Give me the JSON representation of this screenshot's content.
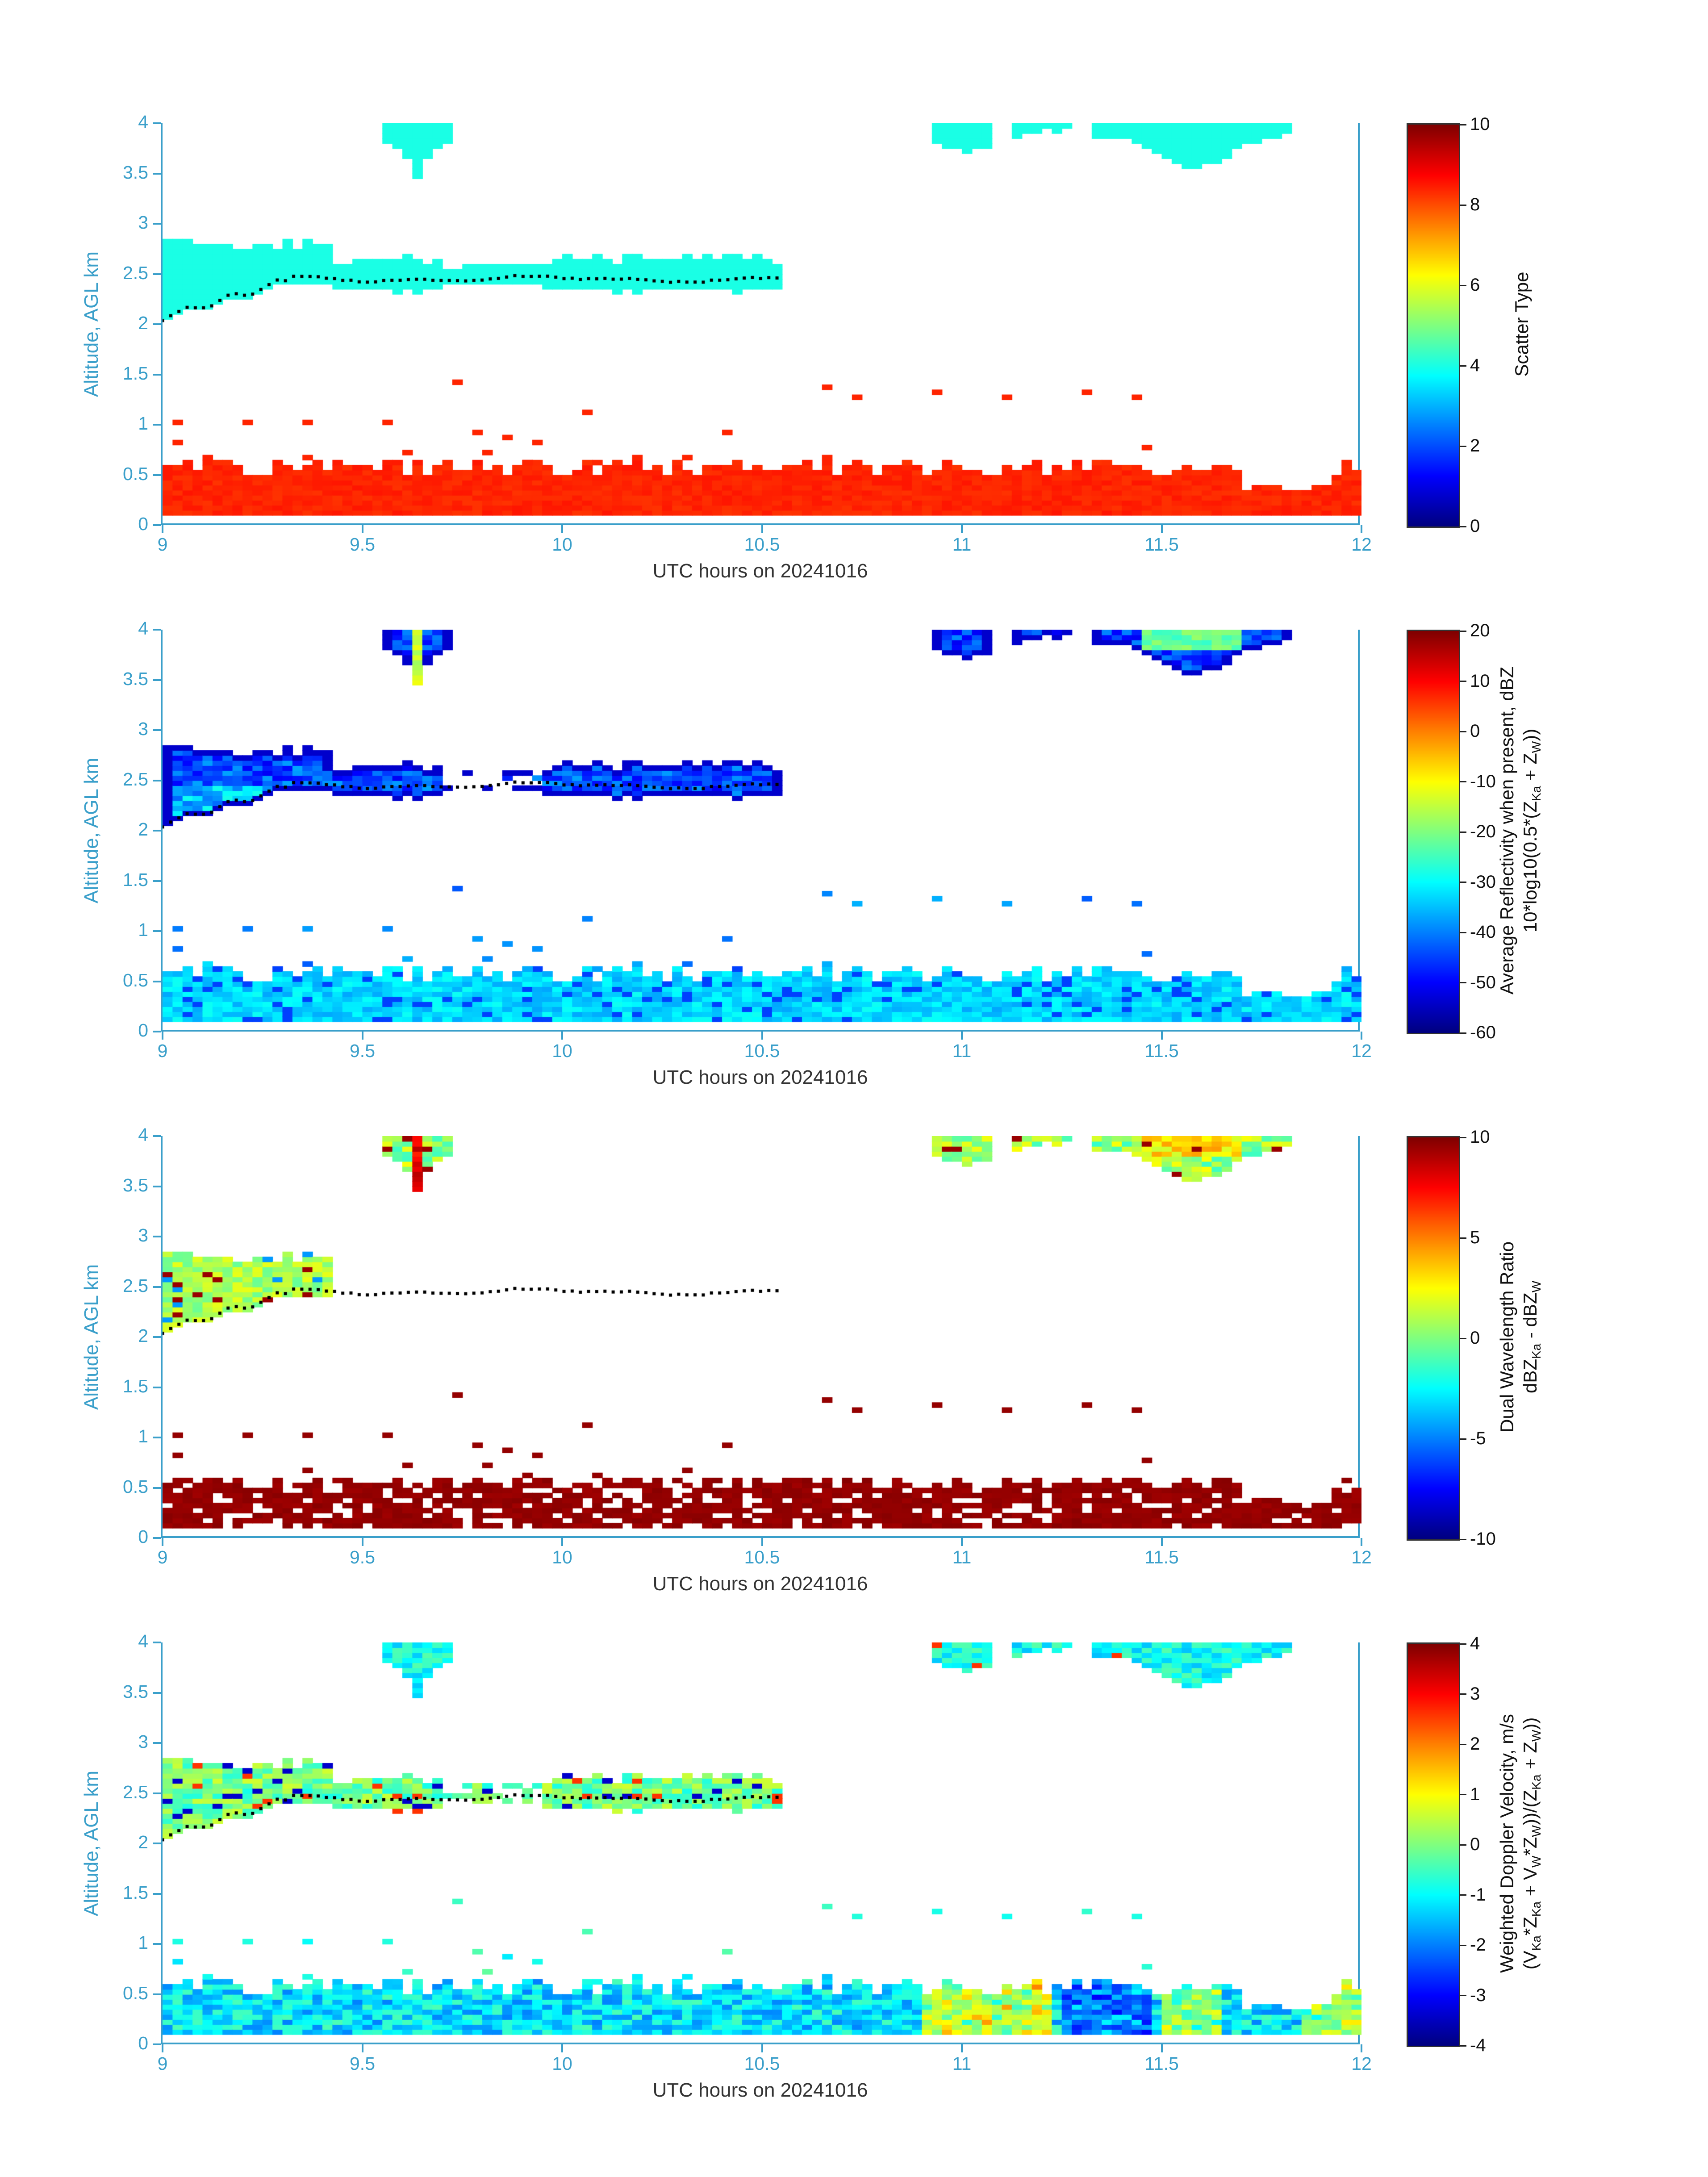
{
  "text_colors": {
    "axis": "#3a9fca",
    "xlabel": "#333333",
    "colorbar": "#111111"
  },
  "chart_data": {
    "type": "heatmap",
    "panel_count": 4,
    "shared": {
      "xlabel": "UTC hours on 20241016",
      "ylabel": "Altitude, AGL km",
      "xlim": [
        9,
        12
      ],
      "ylim": [
        0,
        4
      ],
      "nx": 120,
      "ny": 80,
      "xticks": [
        "9",
        "9.5",
        "10",
        "10.5",
        "11",
        "11.5",
        "12"
      ],
      "yticks": [
        "0",
        "0.5",
        "1",
        "1.5",
        "2",
        "2.5",
        "3",
        "3.5",
        "4"
      ],
      "cloud_band": {
        "x0": 9.0,
        "x1": 10.56,
        "left_x1": 9.42,
        "left_top": 2.74,
        "mid_top": 2.6,
        "thin_x0": 9.7,
        "thin_x1": 9.96,
        "thin_bot": 2.38,
        "thin_top": 2.54,
        "bot": 2.36
      },
      "surface_band": {
        "y_bot": 0.12,
        "top_base": 0.5,
        "top_var": 0.18,
        "notch_x0": 11.7,
        "notch_x1": 11.92,
        "notch_top": 0.34
      },
      "anvils": [
        {
          "x0": 9.55,
          "x1": 9.73,
          "xc": 9.64,
          "hw": 0.09,
          "d0": 0.12,
          "d1": 0.38,
          "pow": 1.5
        },
        {
          "x0": 10.93,
          "x1": 11.27,
          "xc": 11.02,
          "sig": 0.1,
          "d0": 0.06,
          "d1": 0.2,
          "gap_x0": 11.08,
          "gap_x1": 11.12
        },
        {
          "x0": 11.33,
          "x1": 11.82,
          "xc": 11.58,
          "sig": 0.13,
          "d0": 0.08,
          "d1": 0.34
        }
      ],
      "streak_x0": 9.615,
      "streak_x1": 9.655,
      "core_x0": 11.46,
      "core_x1": 11.7,
      "core_ymin": 3.82,
      "dots": [
        [
          9.04,
          1.0
        ],
        [
          9.04,
          0.84
        ],
        [
          9.22,
          1.02
        ],
        [
          9.37,
          1.04
        ],
        [
          9.37,
          0.7
        ],
        [
          9.55,
          1.0
        ],
        [
          9.62,
          0.72
        ],
        [
          9.73,
          1.43
        ],
        [
          9.79,
          0.92
        ],
        [
          9.82,
          0.74
        ],
        [
          9.87,
          0.85
        ],
        [
          9.9,
          0.62
        ],
        [
          9.95,
          0.84
        ],
        [
          10.07,
          1.1
        ],
        [
          10.09,
          0.62
        ],
        [
          10.32,
          0.7
        ],
        [
          10.4,
          0.92
        ],
        [
          10.66,
          1.35
        ],
        [
          10.73,
          1.28
        ],
        [
          10.95,
          1.33
        ],
        [
          11.12,
          1.28
        ],
        [
          11.3,
          1.3
        ],
        [
          11.45,
          1.25
        ],
        [
          11.46,
          0.78
        ]
      ],
      "ceilometer_line": {
        "x0": 9.0,
        "x1": 10.55,
        "knee": 9.32,
        "y0": 2.06,
        "slope": 1.2,
        "y_flat": 2.45
      }
    },
    "panels": [
      {
        "name": "scatter-type",
        "colorbar": {
          "min": 0,
          "max": 10,
          "ticks": [
            0,
            2,
            4,
            6,
            8,
            10
          ],
          "label_lines": [
            "Scatter Type"
          ]
        },
        "cloud": {
          "v": 4,
          "spread": 0
        },
        "anvil": {
          "v": 4,
          "spread": 0
        },
        "surface": {
          "v": 8.4,
          "spread": 0.3
        },
        "dots": {
          "v": 8.4,
          "spread": 0
        }
      },
      {
        "name": "average-reflectivity",
        "colorbar": {
          "min": -60,
          "max": 20,
          "ticks": [
            -60,
            -50,
            -40,
            -30,
            -20,
            -10,
            0,
            10,
            20
          ],
          "label_lines": [
            "Average Reflectivity when present, dBZ",
            "10*log10(0.5*(Z_{Ka} + Z_{W}))"
          ]
        },
        "cloud": {
          "v": -44,
          "spread": 14,
          "edge": -54,
          "grad_x": 9.28,
          "grad_dv": 9,
          "thin_hole_p": 0.7
        },
        "anvil": {
          "v": -45,
          "spread": 12,
          "edge": -54,
          "streak": -14,
          "streak_spread": 8,
          "core": -22,
          "core_spread": 8
        },
        "surface": {
          "v": -33,
          "spread": 8,
          "p_lo": 0.1,
          "lo": -45
        },
        "dots": {
          "v": -40,
          "spread": 8
        }
      },
      {
        "name": "dual-wavelength-ratio",
        "colorbar": {
          "min": -10,
          "max": 10,
          "ticks": [
            -10,
            -5,
            0,
            5,
            10
          ],
          "label_lines": [
            "Dual Wavelength Ratio",
            "dBZ_{Ka} - dBZ_{W}"
          ]
        },
        "cloud": {
          "v": 0.8,
          "spread": 2.6,
          "x_max": 9.42,
          "p_hi": 0.05,
          "hi": 9.5,
          "p_lo": 0.05,
          "lo": -4.5
        },
        "anvil": {
          "v": 0.5,
          "spread": 4,
          "streak": 7.5,
          "streak_spread": 3,
          "p_hi": 0.06,
          "hi": 9.5,
          "core": 3,
          "core_spread": 3
        },
        "surface": {
          "v": 9.6,
          "spread": 0.5,
          "hole_p": 0.2,
          "max_y": 0.58
        },
        "dots": {
          "v": 9.6,
          "spread": 0
        }
      },
      {
        "name": "weighted-doppler-velocity",
        "colorbar": {
          "min": -4,
          "max": 4,
          "ticks": [
            -4,
            -3,
            -2,
            -1,
            0,
            1,
            2,
            3,
            4
          ],
          "label_lines": [
            "Weighted Doppler Velocity, m/s",
            "(V_{Ka}*Z_{Ka} + V_{W}*Z_{W}))/(Z_{Ka} + Z_{W}))"
          ]
        },
        "cloud": {
          "v": -0.1,
          "spread": 1.5,
          "thin_hole_p": 0.5,
          "p_hi": 0.03,
          "hi": 2.6,
          "p_lo": 0.05,
          "lo": -3.4
        },
        "anvil": {
          "v": -0.9,
          "spread": 1.2,
          "p_hi": 0.03,
          "hi": 2.6
        },
        "surface": {
          "v": -1.2,
          "spread": 1.6,
          "regions": [
            {
              "x0": 10.9,
              "x1": 11.22,
              "dv": 2.4
            },
            {
              "x0": 11.24,
              "x1": 11.48,
              "dv": -1.3
            },
            {
              "x0": 11.5,
              "x1": 11.66,
              "dv": 1.6
            },
            {
              "x0": 11.84,
              "x1": 12.0,
              "dv": 1.8
            }
          ]
        },
        "dots": {
          "v": -0.7,
          "spread": 1
        }
      }
    ]
  }
}
